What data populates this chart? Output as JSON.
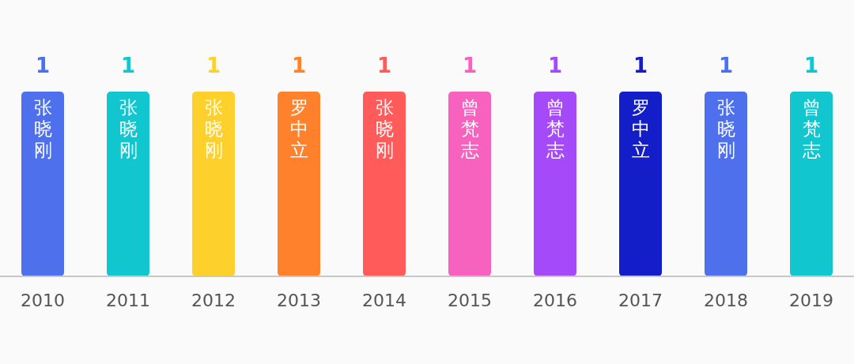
{
  "chart_data": {
    "type": "bar",
    "categories": [
      "2010",
      "2011",
      "2012",
      "2013",
      "2014",
      "2015",
      "2016",
      "2017",
      "2018",
      "2019"
    ],
    "values": [
      1,
      1,
      1,
      1,
      1,
      1,
      1,
      1,
      1,
      1
    ],
    "colors": [
      "#4f70ec",
      "#12c6cf",
      "#fdd02c",
      "#ff812b",
      "#ff5b5b",
      "#f662bd",
      "#a54af9",
      "#141ec8",
      "#4f70ec",
      "#12c6cf"
    ],
    "data_labels": true,
    "annotations": [
      {
        "text": "张晓刚",
        "x": "2010",
        "y": 1
      },
      {
        "text": "张晓刚",
        "x": "2011",
        "y": 1
      },
      {
        "text": "张晓刚",
        "x": "2012",
        "y": 1
      },
      {
        "text": "罗中立",
        "x": "2013",
        "y": 1
      },
      {
        "text": "张晓刚",
        "x": "2014",
        "y": 1
      },
      {
        "text": "曾梵志",
        "x": "2015",
        "y": 1
      },
      {
        "text": "曾梵志",
        "x": "2016",
        "y": 1
      },
      {
        "text": "罗中立",
        "x": "2017",
        "y": 1
      },
      {
        "text": "张晓刚",
        "x": "2018",
        "y": 1
      },
      {
        "text": "曾梵志",
        "x": "2019",
        "y": 1
      }
    ]
  }
}
